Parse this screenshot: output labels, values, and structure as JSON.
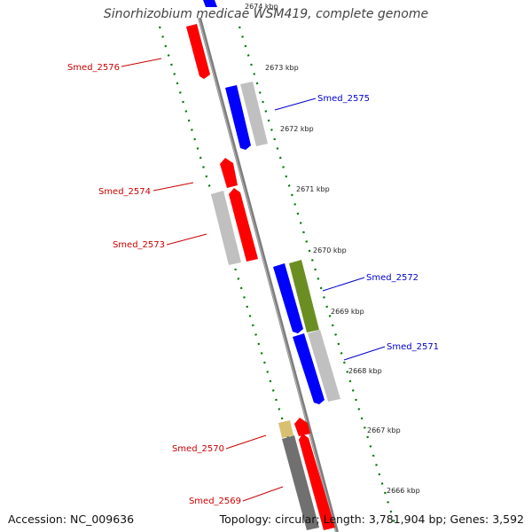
{
  "title": "Sinorhizobium medicae WSM419, complete genome",
  "footer": {
    "accession": "Accession: NC_009636",
    "topology": "Topology: circular; Length: 3,781,904 bp; Genes: 3,592"
  },
  "colors": {
    "red": "#ff0000",
    "blue": "#0000ff",
    "olive": "#6b8e23",
    "grey": "#c0c0c0",
    "dark_grey": "#707070",
    "tan": "#d8c070",
    "tick_green": "#007700",
    "backbone": "#808080",
    "label_red": "#cc0000",
    "label_blue": "#0000cc"
  },
  "ticks": [
    "2674 kbp",
    "2673 kbp",
    "2672 kbp",
    "2671 kbp",
    "2670 kbp",
    "2669 kbp",
    "2668 kbp",
    "2667 kbp",
    "2666 kbp"
  ],
  "gene_labels": {
    "smed_2576": "Smed_2576",
    "smed_2575": "Smed_2575",
    "smed_2574": "Smed_2574",
    "smed_2573": "Smed_2573",
    "smed_2572": "Smed_2572",
    "smed_2571": "Smed_2571",
    "smed_2570": "Smed_2570",
    "smed_2569": "Smed_2569"
  }
}
